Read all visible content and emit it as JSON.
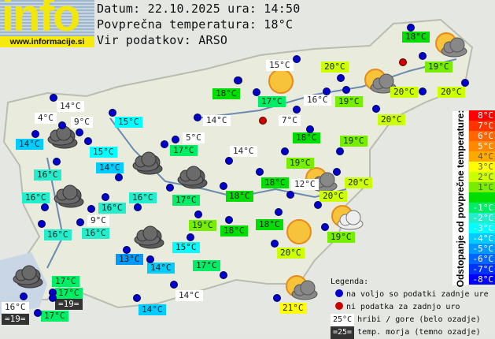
{
  "header": {
    "logo_text": "info",
    "logo_url": "www.informacije.si",
    "date_line": "Datum: 22.10.2025 ura: 14:50",
    "avg_line": "Povprečna temperatura: 18°C",
    "source_line": "Vir podatkov: ARSO"
  },
  "colors": {
    "station_ok": "#0000cc",
    "station_missing": "#cc0000",
    "mountain_bg": "#ffffff",
    "sea_bg": "#333333"
  },
  "labels": [
    {
      "t": "18°C",
      "bg": "#00dd00"
    },
    {
      "t": "15°C",
      "bg": "#ffffff"
    },
    {
      "t": "20°C",
      "bg": "#ccff00"
    },
    {
      "t": "19°C",
      "bg": "#77ee00"
    },
    {
      "t": "18°C",
      "bg": "#00dd00"
    },
    {
      "t": "17°C",
      "bg": "#00ee66"
    },
    {
      "t": "16°C",
      "bg": "#ffffff"
    },
    {
      "t": "19°C",
      "bg": "#77ee00"
    },
    {
      "t": "20°C",
      "bg": "#ccff00"
    },
    {
      "t": "20°C",
      "bg": "#ccff00"
    },
    {
      "t": "14°C",
      "bg": "#ffffff"
    },
    {
      "t": "4°C",
      "bg": "#ffffff"
    },
    {
      "t": "9°C",
      "bg": "#ffffff"
    },
    {
      "t": "15°C",
      "bg": "#00ffff"
    },
    {
      "t": "14°C",
      "bg": "#ffffff"
    },
    {
      "t": "7°C",
      "bg": "#ffffff"
    },
    {
      "t": "20°C",
      "bg": "#ccff00"
    },
    {
      "t": "14°C",
      "bg": "#00ccff"
    },
    {
      "t": "5°C",
      "bg": "#ffffff"
    },
    {
      "t": "18°C",
      "bg": "#00dd00"
    },
    {
      "t": "17°C",
      "bg": "#00ee66"
    },
    {
      "t": "15°C",
      "bg": "#00ffff"
    },
    {
      "t": "14°C",
      "bg": "#ffffff"
    },
    {
      "t": "19°C",
      "bg": "#77ee00"
    },
    {
      "t": "14°C",
      "bg": "#00ccff"
    },
    {
      "t": "19°C",
      "bg": "#77ee00"
    },
    {
      "t": "16°C",
      "bg": "#22eecc"
    },
    {
      "t": "18°C",
      "bg": "#00dd00"
    },
    {
      "t": "12°C",
      "bg": "#ffffff"
    },
    {
      "t": "20°C",
      "bg": "#ccff00"
    },
    {
      "t": "16°C",
      "bg": "#22eecc"
    },
    {
      "t": "17°C",
      "bg": "#00ee66"
    },
    {
      "t": "18°C",
      "bg": "#00dd00"
    },
    {
      "t": "16°C",
      "bg": "#22eecc"
    },
    {
      "t": "16°C",
      "bg": "#22eecc"
    },
    {
      "t": "20°C",
      "bg": "#ccff00"
    },
    {
      "t": "9°C",
      "bg": "#ffffff"
    },
    {
      "t": "19°C",
      "bg": "#77ee00"
    },
    {
      "t": "18°C",
      "bg": "#00dd00"
    },
    {
      "t": "18°C",
      "bg": "#00dd00"
    },
    {
      "t": "16°C",
      "bg": "#22eecc"
    },
    {
      "t": "16°C",
      "bg": "#22eecc"
    },
    {
      "t": "19°C",
      "bg": "#77ee00"
    },
    {
      "t": "13°C",
      "bg": "#0099ff"
    },
    {
      "t": "14°C",
      "bg": "#00ccff"
    },
    {
      "t": "15°C",
      "bg": "#00ffff"
    },
    {
      "t": "20°C",
      "bg": "#ccff00"
    },
    {
      "t": "17°C",
      "bg": "#00ee66"
    },
    {
      "t": "17°C",
      "bg": "#00ee66"
    },
    {
      "t": "17°C",
      "bg": "#00ee66"
    },
    {
      "t": "=19=",
      "bg": "#333333"
    },
    {
      "t": "16°C",
      "bg": "#ffffff"
    },
    {
      "t": "=19=",
      "bg": "#333333"
    },
    {
      "t": "17°C",
      "bg": "#00ee66"
    },
    {
      "t": "14°C",
      "bg": "#ffffff"
    },
    {
      "t": "14°C",
      "bg": "#00ccff"
    },
    {
      "t": "21°C",
      "bg": "#ffff00"
    }
  ],
  "weather_icons": [
    "sunny",
    "partly-cloudy",
    "partly-cloudy",
    "sunny",
    "partly-cloudy",
    "partly-cloudy",
    "partly-cloudy",
    "cloudy",
    "cloudy",
    "cloudy",
    "cloudy",
    "cloudy",
    "cloudy"
  ],
  "scale": {
    "title": "Odstopanje od povprečne temperature:",
    "rows": [
      {
        "t": "8°C",
        "bg": "#ff0000"
      },
      {
        "t": "7°C",
        "bg": "#ff3300"
      },
      {
        "t": "6°C",
        "bg": "#ff6600"
      },
      {
        "t": "5°C",
        "bg": "#ff8800"
      },
      {
        "t": "4°C",
        "bg": "#ffaa00"
      },
      {
        "t": "3°C",
        "bg": "#ffff00"
      },
      {
        "t": "2°C",
        "bg": "#ccff00"
      },
      {
        "t": "1°C",
        "bg": "#77ee00"
      },
      {
        "t": "",
        "bg": "#00dd00"
      },
      {
        "t": "-1°C",
        "bg": "#00ee66"
      },
      {
        "t": "-2°C",
        "bg": "#22eecc"
      },
      {
        "t": "-3°C",
        "bg": "#00ffff"
      },
      {
        "t": "-4°C",
        "bg": "#00ccff"
      },
      {
        "t": "-5°C",
        "bg": "#0099ff"
      },
      {
        "t": "-6°C",
        "bg": "#0066ff"
      },
      {
        "t": "-7°C",
        "bg": "#0033ff"
      },
      {
        "t": "-8°C",
        "bg": "#0000ff"
      }
    ]
  },
  "legend": {
    "title": "Legenda:",
    "ok": "na voljo so podatki zadnje ure",
    "missing": "ni podatka za zadnjo uro",
    "mountain_sample": "25°C",
    "mountain": "hribi / gore (belo ozadje)",
    "sea_sample": "=25=",
    "sea": "temp. morja (temno ozadje)"
  }
}
